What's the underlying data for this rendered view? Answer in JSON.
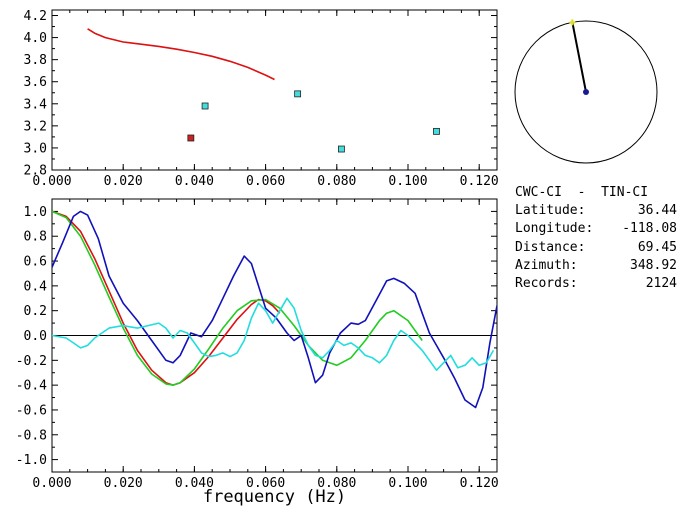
{
  "station": {
    "pair": "CWC-CI  -  TIN-CI",
    "latitude_label": "Latitude:",
    "latitude": "36.44",
    "longitude_label": "Longitude:",
    "longitude": "-118.08",
    "distance_label": "Distance:",
    "distance": "69.45",
    "azimuth_label": "Azimuth:",
    "azimuth": "348.92",
    "records_label": "Records:",
    "records": "2124",
    "azimuth_deg": 348.92
  },
  "colors": {
    "red": "#dd1111",
    "green": "#22cc22",
    "blue": "#1111bb",
    "cyan": "#22dddd",
    "marker_red": "#cc2222",
    "marker_cyan": "#44dddd",
    "azimuth_dot": "#1a1a99",
    "azimuth_star": "#dddd22"
  },
  "chart_data": [
    {
      "type": "scatter",
      "xlim": [
        0,
        0.125
      ],
      "ylim": [
        2.8,
        4.25
      ],
      "xticks": [
        "0.000",
        "0.020",
        "0.040",
        "0.060",
        "0.080",
        "0.100",
        "0.120"
      ],
      "yticks": [
        "2.8",
        "3.0",
        "3.2",
        "3.4",
        "3.6",
        "3.8",
        "4.0",
        "4.2"
      ],
      "curve": {
        "color": "red",
        "x": [
          0.01,
          0.012,
          0.015,
          0.02,
          0.025,
          0.03,
          0.035,
          0.04,
          0.045,
          0.05,
          0.055,
          0.06,
          0.0625
        ],
        "y": [
          4.08,
          4.04,
          4.0,
          3.96,
          3.94,
          3.92,
          3.895,
          3.865,
          3.83,
          3.785,
          3.73,
          3.66,
          3.62
        ]
      },
      "points": [
        {
          "x": 0.039,
          "y": 3.09,
          "color": "marker_red"
        },
        {
          "x": 0.043,
          "y": 3.38,
          "color": "marker_cyan"
        },
        {
          "x": 0.069,
          "y": 3.49,
          "color": "marker_cyan"
        },
        {
          "x": 0.0813,
          "y": 2.99,
          "color": "marker_cyan"
        },
        {
          "x": 0.108,
          "y": 3.15,
          "color": "marker_cyan"
        }
      ]
    },
    {
      "type": "line",
      "xlim": [
        0,
        0.125
      ],
      "ylim": [
        -1.1,
        1.1
      ],
      "xticks": [
        "0.000",
        "0.020",
        "0.040",
        "0.060",
        "0.080",
        "0.100",
        "0.120"
      ],
      "yticks": [
        "1.0",
        "0.8",
        "0.6",
        "0.4",
        "0.2",
        "0.0",
        "-0.2",
        "-0.4",
        "-0.6",
        "-0.8",
        "-1.0"
      ],
      "xlabel": "frequency (Hz)",
      "zero_line": true,
      "series": [
        {
          "color": "red",
          "x": [
            0,
            0.004,
            0.008,
            0.012,
            0.016,
            0.02,
            0.024,
            0.028,
            0.032,
            0.034,
            0.036,
            0.04,
            0.044,
            0.048,
            0.052,
            0.056,
            0.058,
            0.06,
            0.062,
            0.064
          ],
          "y": [
            1.0,
            0.96,
            0.84,
            0.62,
            0.36,
            0.1,
            -0.12,
            -0.28,
            -0.38,
            -0.4,
            -0.38,
            -0.3,
            -0.17,
            -0.02,
            0.13,
            0.25,
            0.29,
            0.28,
            0.24,
            0.18
          ]
        },
        {
          "color": "green",
          "x": [
            0,
            0.004,
            0.008,
            0.012,
            0.016,
            0.02,
            0.024,
            0.028,
            0.032,
            0.034,
            0.036,
            0.04,
            0.044,
            0.048,
            0.052,
            0.056,
            0.06,
            0.064,
            0.068,
            0.072,
            0.076,
            0.08,
            0.084,
            0.088,
            0.092,
            0.094,
            0.096,
            0.1,
            0.104
          ],
          "y": [
            1.0,
            0.95,
            0.8,
            0.57,
            0.31,
            0.06,
            -0.16,
            -0.31,
            -0.39,
            -0.4,
            -0.38,
            -0.27,
            -0.11,
            0.06,
            0.2,
            0.28,
            0.29,
            0.22,
            0.08,
            -0.08,
            -0.2,
            -0.24,
            -0.18,
            -0.04,
            0.12,
            0.18,
            0.2,
            0.12,
            -0.04
          ]
        },
        {
          "color": "blue",
          "x": [
            0,
            0.003,
            0.006,
            0.008,
            0.01,
            0.013,
            0.016,
            0.02,
            0.024,
            0.028,
            0.032,
            0.034,
            0.036,
            0.039,
            0.042,
            0.045,
            0.048,
            0.051,
            0.054,
            0.056,
            0.058,
            0.06,
            0.063,
            0.066,
            0.068,
            0.07,
            0.072,
            0.074,
            0.076,
            0.078,
            0.081,
            0.084,
            0.086,
            0.088,
            0.091,
            0.094,
            0.096,
            0.099,
            0.102,
            0.104,
            0.106,
            0.108,
            0.11,
            0.113,
            0.116,
            0.119,
            0.121,
            0.123,
            0.125
          ],
          "y": [
            0.55,
            0.75,
            0.96,
            1.0,
            0.97,
            0.78,
            0.48,
            0.26,
            0.12,
            -0.04,
            -0.2,
            -0.22,
            -0.16,
            0.02,
            -0.01,
            0.12,
            0.3,
            0.48,
            0.64,
            0.58,
            0.4,
            0.22,
            0.14,
            0.02,
            -0.04,
            0.0,
            -0.18,
            -0.38,
            -0.32,
            -0.14,
            0.02,
            0.1,
            0.09,
            0.12,
            0.28,
            0.44,
            0.46,
            0.42,
            0.34,
            0.18,
            0.02,
            -0.08,
            -0.18,
            -0.34,
            -0.52,
            -0.58,
            -0.42,
            -0.06,
            0.24
          ]
        },
        {
          "color": "cyan",
          "x": [
            0,
            0.004,
            0.006,
            0.008,
            0.01,
            0.012,
            0.016,
            0.02,
            0.024,
            0.027,
            0.03,
            0.032,
            0.034,
            0.036,
            0.038,
            0.04,
            0.042,
            0.044,
            0.046,
            0.048,
            0.05,
            0.052,
            0.054,
            0.056,
            0.058,
            0.06,
            0.062,
            0.064,
            0.066,
            0.068,
            0.07,
            0.072,
            0.074,
            0.076,
            0.078,
            0.08,
            0.082,
            0.084,
            0.086,
            0.088,
            0.09,
            0.092,
            0.094,
            0.096,
            0.098,
            0.1,
            0.102,
            0.104,
            0.106,
            0.108,
            0.11,
            0.112,
            0.114,
            0.116,
            0.118,
            0.12,
            0.122,
            0.124
          ],
          "y": [
            0.0,
            -0.02,
            -0.06,
            -0.1,
            -0.08,
            -0.02,
            0.06,
            0.08,
            0.06,
            0.08,
            0.1,
            0.06,
            -0.02,
            0.04,
            0.02,
            -0.06,
            -0.14,
            -0.17,
            -0.16,
            -0.14,
            -0.17,
            -0.14,
            -0.04,
            0.14,
            0.26,
            0.2,
            0.1,
            0.2,
            0.3,
            0.22,
            0.04,
            -0.08,
            -0.16,
            -0.18,
            -0.12,
            -0.04,
            -0.08,
            -0.06,
            -0.1,
            -0.16,
            -0.18,
            -0.22,
            -0.16,
            -0.04,
            0.04,
            0.0,
            -0.06,
            -0.12,
            -0.2,
            -0.28,
            -0.22,
            -0.16,
            -0.26,
            -0.24,
            -0.18,
            -0.24,
            -0.22,
            -0.12
          ]
        }
      ]
    }
  ]
}
